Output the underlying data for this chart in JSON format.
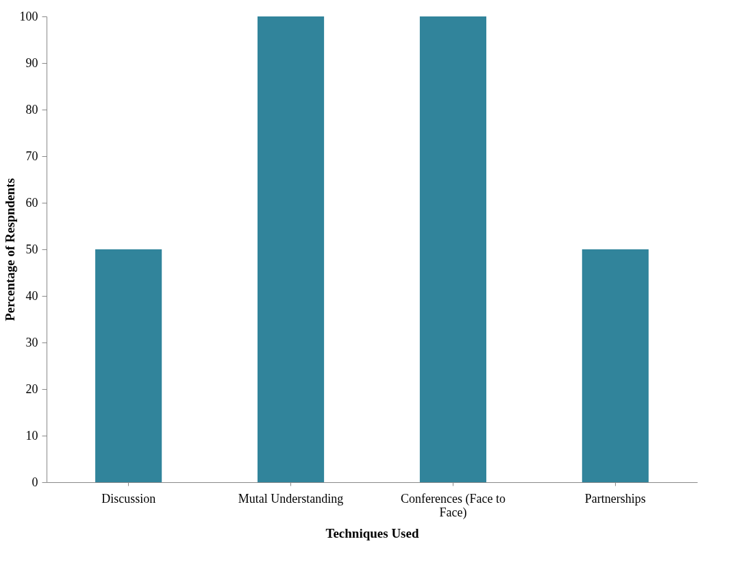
{
  "chart_data": {
    "type": "bar",
    "xlabel": "Techniques Used",
    "ylabel": "Percentage of Respndents",
    "categories": [
      "Discussion",
      "Mutal Understanding",
      "Conferences (Face to Face)",
      "Partnerships"
    ],
    "values": [
      50,
      100,
      100,
      50
    ],
    "color": "#31849b",
    "ylim": [
      0,
      100
    ],
    "yticks": [
      0,
      10,
      20,
      30,
      40,
      50,
      60,
      70,
      80,
      90,
      100
    ],
    "grid": false
  }
}
